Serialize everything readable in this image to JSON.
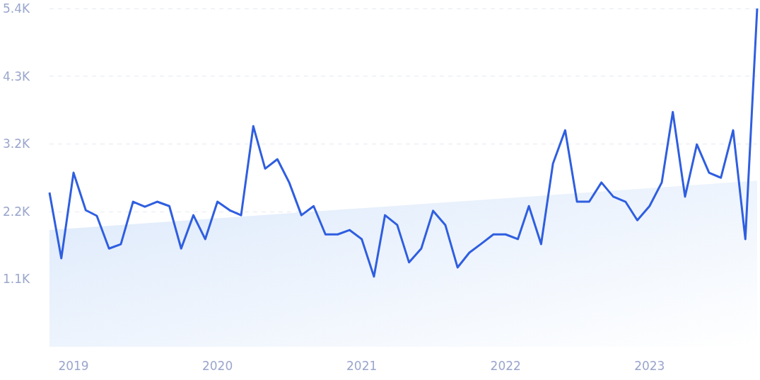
{
  "chart_data": {
    "type": "line",
    "marker": "none",
    "grid": "y",
    "ylim": [
      0,
      5375
    ],
    "yticks": [
      {
        "value": 1075,
        "label": "1.1K"
      },
      {
        "value": 2150,
        "label": "2.2K"
      },
      {
        "value": 3225,
        "label": "3.2K"
      },
      {
        "value": 4300,
        "label": "4.3K"
      },
      {
        "value": 5375,
        "label": "5.4K"
      }
    ],
    "xlim": [
      "2018-11",
      "2023-10"
    ],
    "xticks": [
      {
        "value": "2019-01",
        "label": "2019"
      },
      {
        "value": "2020-01",
        "label": "2020"
      },
      {
        "value": "2021-01",
        "label": "2021"
      },
      {
        "value": "2022-01",
        "label": "2022"
      },
      {
        "value": "2023-01",
        "label": "2023"
      }
    ],
    "x": [
      "2018-11",
      "2018-12",
      "2019-01",
      "2019-02",
      "2019-03",
      "2019-04",
      "2019-05",
      "2019-06",
      "2019-07",
      "2019-08",
      "2019-09",
      "2019-10",
      "2019-11",
      "2019-12",
      "2020-01",
      "2020-02",
      "2020-03",
      "2020-04",
      "2020-05",
      "2020-06",
      "2020-07",
      "2020-08",
      "2020-09",
      "2020-10",
      "2020-11",
      "2020-12",
      "2021-01",
      "2021-02",
      "2021-03",
      "2021-04",
      "2021-05",
      "2021-06",
      "2021-07",
      "2021-08",
      "2021-09",
      "2021-10",
      "2021-11",
      "2021-12",
      "2022-01",
      "2022-02",
      "2022-03",
      "2022-04",
      "2022-05",
      "2022-06",
      "2022-07",
      "2022-08",
      "2022-09",
      "2022-10",
      "2022-11",
      "2022-12",
      "2023-01",
      "2023-02",
      "2023-03",
      "2023-04",
      "2023-05",
      "2023-06",
      "2023-07",
      "2023-08",
      "2023-09",
      "2023-10"
    ],
    "series": [
      {
        "color": "#2f5ee0",
        "values": [
          2450,
          1405,
          2765,
          2170,
          2080,
          1560,
          1630,
          2305,
          2225,
          2305,
          2235,
          1560,
          2090,
          1710,
          2305,
          2170,
          2090,
          3505,
          2830,
          2980,
          2610,
          2090,
          2235,
          1785,
          1785,
          1855,
          1710,
          1115,
          2090,
          1935,
          1340,
          1560,
          2160,
          1935,
          1260,
          1495,
          1640,
          1785,
          1785,
          1710,
          2235,
          1630,
          2910,
          3440,
          2305,
          2305,
          2610,
          2385,
          2305,
          2010,
          2235,
          2610,
          3730,
          2385,
          3215,
          2765,
          2685,
          3440,
          1710,
          5375
        ]
      },
      {
        "type": "area",
        "color": "#dce9fb",
        "x": [
          "2018-11",
          "2023-10"
        ],
        "values": [
          1855,
          2640
        ]
      }
    ]
  }
}
